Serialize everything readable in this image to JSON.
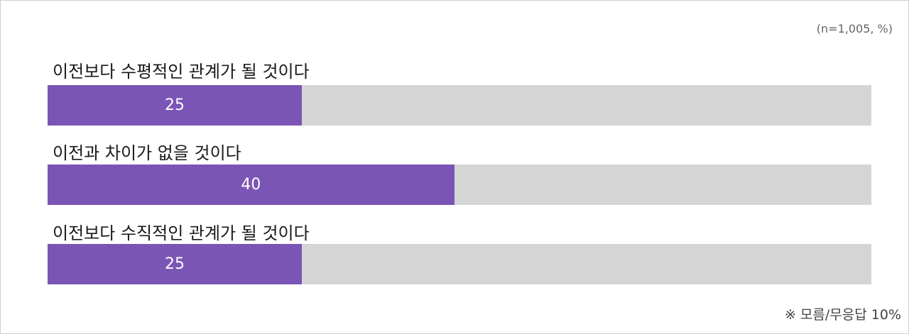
{
  "colors": {
    "bar": "#7B55B5",
    "track": "#D5D5D5",
    "value_text": "#FFFFFF"
  },
  "chart_data": {
    "type": "bar",
    "orientation": "horizontal",
    "categories": [
      "이전보다 수평적인 관계가 될 것이다",
      "이전과 차이가 없을 것이다",
      "이전보다 수직적인 관계가 될 것이다"
    ],
    "values": [
      25,
      40,
      25
    ],
    "value_labels": [
      "25",
      "40",
      "25"
    ],
    "xlim": [
      0,
      81
    ],
    "note": "(n=1,005, %)",
    "footnote": "※ 모름/무응답 10%",
    "grid": false,
    "legend": "none"
  }
}
